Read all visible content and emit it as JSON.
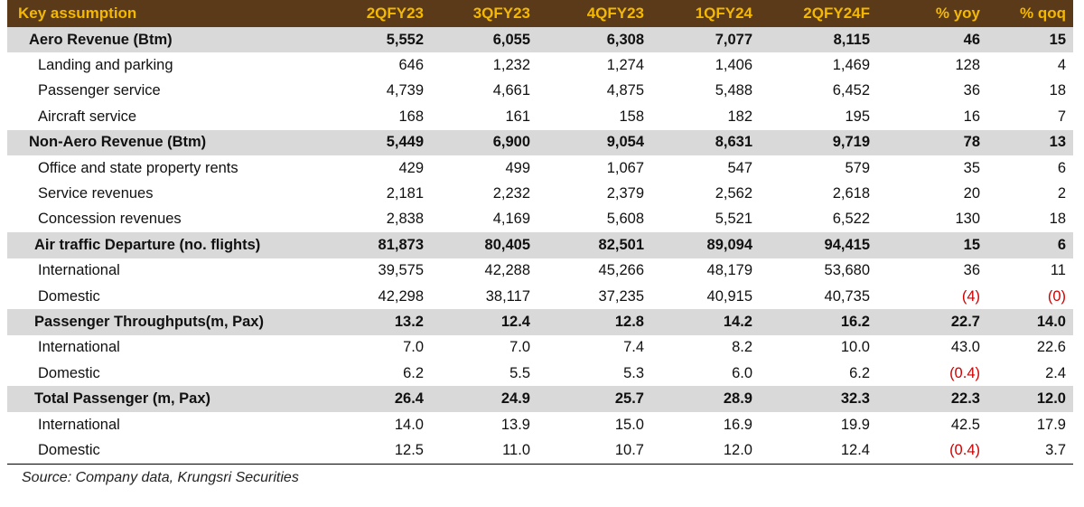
{
  "table": {
    "header": {
      "label": "Key assumption",
      "columns": [
        "2QFY23",
        "3QFY23",
        "4QFY23",
        "1QFY24",
        "2QFY24F",
        "% yoy",
        "% qoq"
      ]
    },
    "rows": [
      {
        "label": "Aero Revenue (Btm)",
        "values": [
          "5,552",
          "6,055",
          "6,308",
          "7,077",
          "8,115",
          "46",
          "15"
        ]
      },
      {
        "label": "Landing and parking",
        "values": [
          "646",
          "1,232",
          "1,274",
          "1,406",
          "1,469",
          "128",
          "4"
        ]
      },
      {
        "label": "Passenger service",
        "values": [
          "4,739",
          "4,661",
          "4,875",
          "5,488",
          "6,452",
          "36",
          "18"
        ]
      },
      {
        "label": "Aircraft service",
        "values": [
          "168",
          "161",
          "158",
          "182",
          "195",
          "16",
          "7"
        ]
      },
      {
        "label": "Non-Aero Revenue (Btm)",
        "values": [
          "5,449",
          "6,900",
          "9,054",
          "8,631",
          "9,719",
          "78",
          "13"
        ]
      },
      {
        "label": "Office and state property rents",
        "values": [
          "429",
          "499",
          "1,067",
          "547",
          "579",
          "35",
          "6"
        ]
      },
      {
        "label": "Service revenues",
        "values": [
          "2,181",
          "2,232",
          "2,379",
          "2,562",
          "2,618",
          "20",
          "2"
        ]
      },
      {
        "label": "Concession revenues",
        "values": [
          "2,838",
          "4,169",
          "5,608",
          "5,521",
          "6,522",
          "130",
          "18"
        ]
      },
      {
        "label": "Air traffic Departure (no. flights)",
        "values": [
          "81,873",
          "80,405",
          "82,501",
          "89,094",
          "94,415",
          "15",
          "6"
        ]
      },
      {
        "label": "International",
        "values": [
          "39,575",
          "42,288",
          "45,266",
          "48,179",
          "53,680",
          "36",
          "11"
        ]
      },
      {
        "label": "Domestic",
        "values": [
          "42,298",
          "38,117",
          "37,235",
          "40,915",
          "40,735",
          "(4)",
          "(0)"
        ]
      },
      {
        "label": "Passenger Throughputs(m, Pax)",
        "values": [
          "13.2",
          "12.4",
          "12.8",
          "14.2",
          "16.2",
          "22.7",
          "14.0"
        ]
      },
      {
        "label": "International",
        "values": [
          "7.0",
          "7.0",
          "7.4",
          "8.2",
          "10.0",
          "43.0",
          "22.6"
        ]
      },
      {
        "label": "Domestic",
        "values": [
          "6.2",
          "5.5",
          "5.3",
          "6.0",
          "6.2",
          "(0.4)",
          "2.4"
        ]
      },
      {
        "label": "Total Passenger (m, Pax)",
        "values": [
          "26.4",
          "24.9",
          "25.7",
          "28.9",
          "32.3",
          "22.3",
          "12.0"
        ]
      },
      {
        "label": "International",
        "values": [
          "14.0",
          "13.9",
          "15.0",
          "16.9",
          "19.9",
          "42.5",
          "17.9"
        ]
      },
      {
        "label": "Domestic",
        "values": [
          "12.5",
          "11.0",
          "10.7",
          "12.0",
          "12.4",
          "(0.4)",
          "3.7"
        ]
      }
    ]
  },
  "source": "Source: Company data, Krungsri Securities",
  "colors": {
    "header_bg": "#5a3a18",
    "header_text": "#f5b800",
    "section_bg": "#d9d9d9",
    "negative": "#d00000"
  }
}
